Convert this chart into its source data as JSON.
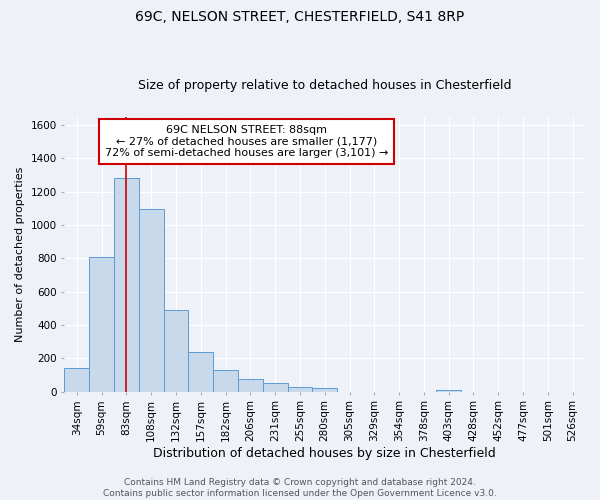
{
  "title": "69C, NELSON STREET, CHESTERFIELD, S41 8RP",
  "subtitle": "Size of property relative to detached houses in Chesterfield",
  "xlabel": "Distribution of detached houses by size in Chesterfield",
  "ylabel": "Number of detached properties",
  "categories": [
    "34sqm",
    "59sqm",
    "83sqm",
    "108sqm",
    "132sqm",
    "157sqm",
    "182sqm",
    "206sqm",
    "231sqm",
    "255sqm",
    "280sqm",
    "305sqm",
    "329sqm",
    "354sqm",
    "378sqm",
    "403sqm",
    "428sqm",
    "452sqm",
    "477sqm",
    "501sqm",
    "526sqm"
  ],
  "values": [
    140,
    810,
    1280,
    1095,
    490,
    240,
    128,
    75,
    50,
    30,
    20,
    0,
    0,
    0,
    0,
    12,
    0,
    0,
    0,
    0,
    0
  ],
  "bar_color": "#c9d9ec",
  "bar_edge_color": "#5b9bd5",
  "vline_color": "#cc0000",
  "ylim": [
    0,
    1650
  ],
  "yticks": [
    0,
    200,
    400,
    600,
    800,
    1000,
    1200,
    1400,
    1600
  ],
  "annotation_title": "69C NELSON STREET: 88sqm",
  "annotation_line1": "← 27% of detached houses are smaller (1,177)",
  "annotation_line2": "72% of semi-detached houses are larger (3,101) →",
  "footer_line1": "Contains HM Land Registry data © Crown copyright and database right 2024.",
  "footer_line2": "Contains public sector information licensed under the Open Government Licence v3.0.",
  "background_color": "#eef2f8",
  "plot_bg_color": "#eef2f8",
  "grid_color": "#ffffff",
  "title_fontsize": 10,
  "subtitle_fontsize": 9,
  "xlabel_fontsize": 9,
  "ylabel_fontsize": 8,
  "tick_fontsize": 7.5,
  "footer_fontsize": 6.5,
  "annotation_fontsize": 8
}
